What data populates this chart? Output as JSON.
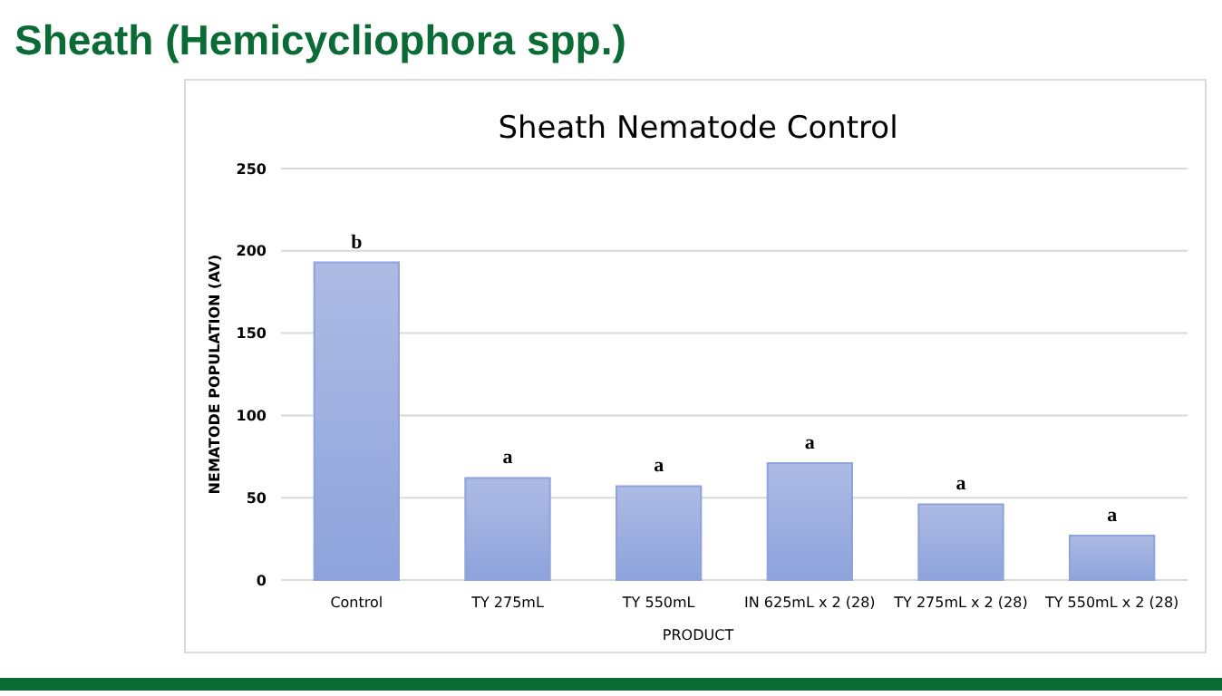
{
  "chart_data": {
    "type": "bar",
    "title": "Sheath (Hemicycliophora spp.)",
    "subtitle": "Sheath Nematode Control",
    "xlabel": "PRODUCT",
    "ylabel": "NEMATODE POPULATION (AV)",
    "categories": [
      "Control",
      "TY 275mL",
      "TY 550mL",
      "IN 625mL x 2 (28)",
      "TY 275mL x 2 (28)",
      "TY 550mL x 2 (28)"
    ],
    "values": [
      193,
      62,
      57,
      71,
      46,
      27
    ],
    "value_labels": [
      "b",
      "a",
      "a",
      "a",
      "a",
      "a"
    ],
    "color": "#8ea3dc",
    "ylim": [
      0,
      250
    ],
    "yticks": [
      0,
      50,
      100,
      150,
      200,
      250
    ],
    "grid": "y"
  }
}
